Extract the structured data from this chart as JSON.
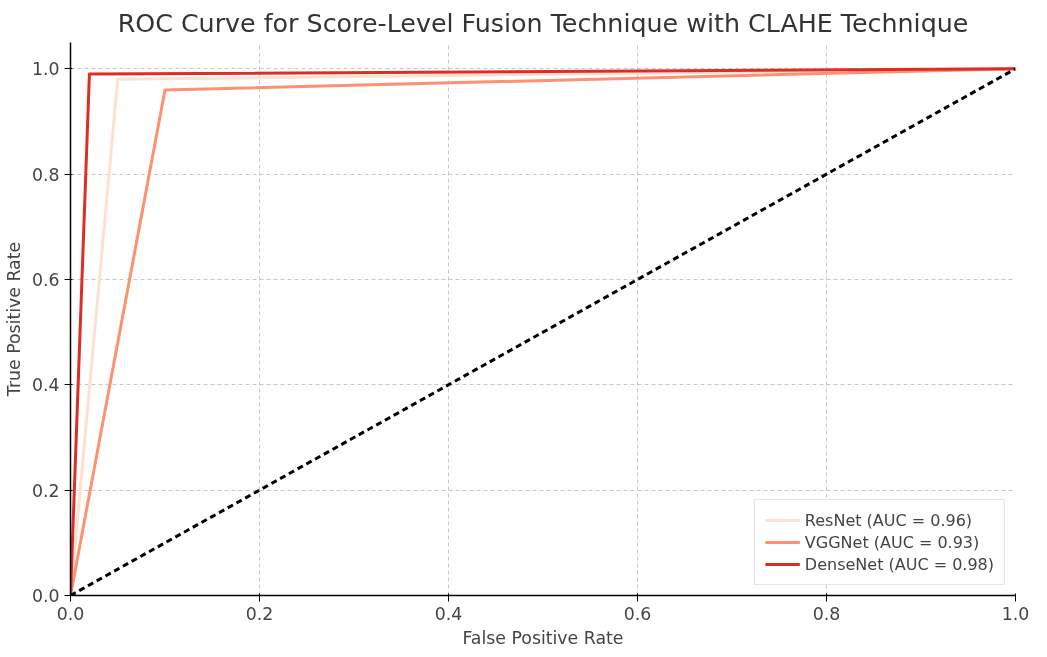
{
  "chart_data": {
    "type": "line",
    "title": "ROC Curve for Score-Level Fusion Technique with CLAHE Technique",
    "xlabel": "False Positive Rate",
    "ylabel": "True Positive Rate",
    "xlim": [
      0,
      1
    ],
    "ylim": [
      0,
      1.05
    ],
    "xticks": [
      {
        "value": 0,
        "label": "0.0"
      },
      0.2,
      0.4,
      0.6,
      0.8,
      {
        "value": 1,
        "label": "1.0"
      }
    ],
    "yticks": [
      {
        "value": 0,
        "label": "0.0"
      },
      0.2,
      0.4,
      0.6,
      0.8,
      {
        "value": 1,
        "label": "1.0"
      }
    ],
    "grid": true,
    "legend": "bottom right",
    "marker": "none",
    "series": [
      {
        "name": "ResNet (AUC = 0.96)",
        "color": "#fee0d2",
        "x": [
          0,
          0.05,
          1
        ],
        "values": [
          0,
          0.98,
          1
        ]
      },
      {
        "name": "VGGNet (AUC = 0.93)",
        "color": "#fc9272",
        "x": [
          0,
          0.1,
          1
        ],
        "values": [
          0,
          0.96,
          1
        ]
      },
      {
        "name": "DenseNet (AUC = 0.98)",
        "color": "#de2d26",
        "x": [
          0,
          0.02,
          1
        ],
        "values": [
          0,
          0.99,
          1
        ]
      },
      {
        "color": "#000000",
        "x": [
          0,
          1
        ],
        "values": [
          0,
          1
        ],
        "line_style": "dashed"
      }
    ]
  }
}
